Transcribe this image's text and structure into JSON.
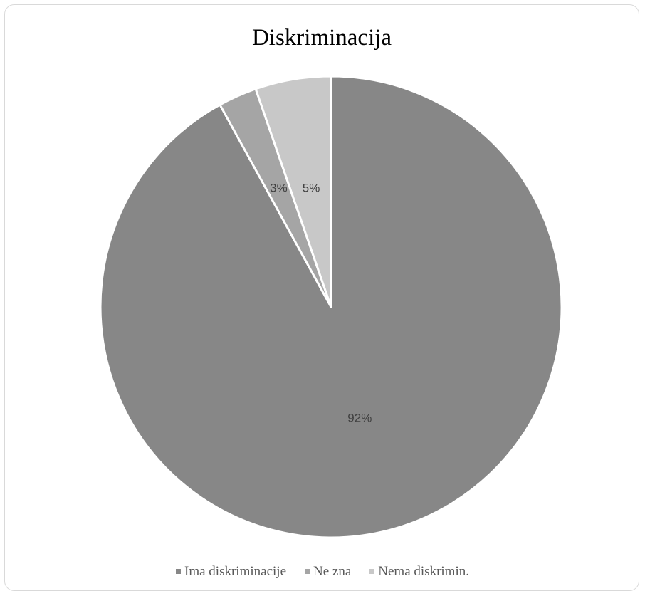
{
  "chart_data": {
    "type": "pie",
    "title": "Diskriminacija",
    "start_angle_deg": 0,
    "direction": "clockwise",
    "slices": [
      {
        "name": "Ima diskriminacije",
        "value": 92,
        "label": "92%",
        "color": "#878787"
      },
      {
        "name": "Ne zna",
        "value": 2.7,
        "label": "3%",
        "color": "#a5a5a5"
      },
      {
        "name": "Nema diskrimin.",
        "value": 5.3,
        "label": "5%",
        "color": "#c8c8c8"
      }
    ],
    "legend_position": "bottom"
  }
}
